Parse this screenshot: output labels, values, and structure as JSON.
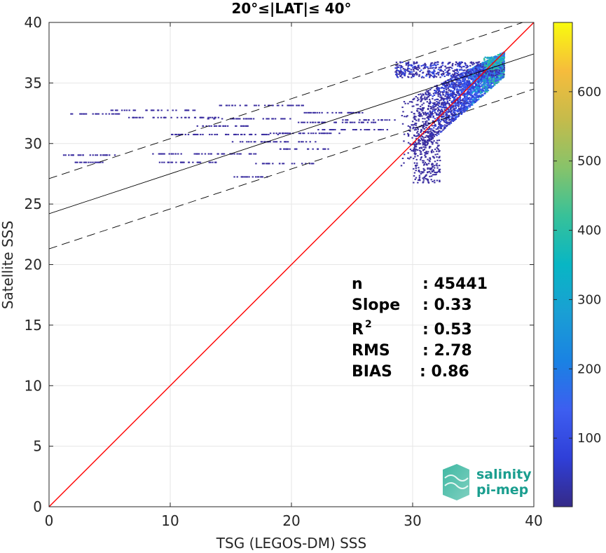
{
  "chart_data": {
    "type": "scatter",
    "title": "20°≤|LAT|≤ 40°",
    "xlabel": "TSG (LEGOS-DM) SSS",
    "ylabel": "Satellite SSS",
    "xlim": [
      0,
      40
    ],
    "ylim": [
      0,
      40
    ],
    "xticks": [
      0,
      10,
      20,
      30,
      40
    ],
    "yticks": [
      0,
      5,
      10,
      15,
      20,
      25,
      30,
      35,
      40
    ],
    "grid": true,
    "colorbar": {
      "min": 1,
      "max": 700,
      "ticks": [
        100,
        200,
        300,
        400,
        500,
        600
      ],
      "colormap": "parula"
    },
    "lines": [
      {
        "name": "identity",
        "style": "solid",
        "color": "#ff0000",
        "intercept": 0,
        "slope": 1
      },
      {
        "name": "regression",
        "style": "solid",
        "color": "#000000",
        "intercept": 24.2,
        "slope": 0.33
      },
      {
        "name": "regression-upper",
        "style": "dashed",
        "color": "#000000",
        "intercept": 27.1,
        "slope": 0.33
      },
      {
        "name": "regression-lower",
        "style": "dashed",
        "color": "#000000",
        "intercept": 21.3,
        "slope": 0.33
      }
    ],
    "density_clusters": [
      {
        "x": [
          29,
          37.5
        ],
        "y": [
          26.8,
          37.3
        ],
        "density": "high"
      },
      {
        "x": [
          1.5,
          29
        ],
        "y": [
          26.8,
          33.3
        ],
        "density": "low"
      }
    ],
    "stats": [
      {
        "label": "n",
        "value": ": 45441"
      },
      {
        "label": "Slope",
        "value": ": 0.33"
      },
      {
        "label": "R",
        "sup": "2",
        "value": ": 0.53"
      },
      {
        "label": "RMS",
        "value": ": 2.78"
      },
      {
        "label": "BIAS",
        "value": ": 0.86"
      }
    ]
  },
  "logo": {
    "line1": "salinity",
    "line2": "pi-mep"
  }
}
